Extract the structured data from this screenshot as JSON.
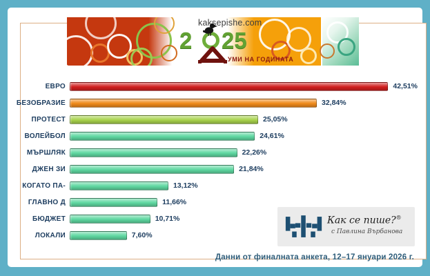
{
  "header": {
    "site": "kaksepishe.com",
    "year": "2025",
    "title": "ДУМИ НА ГОДИНАТА"
  },
  "chart_data": {
    "type": "bar",
    "orientation": "horizontal",
    "title": "2025 ДУМИ НА ГОДИНАТА",
    "categories": [
      "ЕВРО",
      "БЕЗОБРАЗИЕ",
      "ПРОТЕСТ",
      "ВОЛЕЙБОЛ",
      "МЪРШЛЯК",
      "ДЖЕН ЗИ",
      "КОГАТО ПА-",
      "ГЛАВНО Д",
      "БЮДЖЕТ",
      "ЛОКАЛИ"
    ],
    "values": [
      42.51,
      32.84,
      25.05,
      24.61,
      22.26,
      21.84,
      13.12,
      11.66,
      10.71,
      7.6
    ],
    "value_labels": [
      "42,51%",
      "32,84%",
      "25,05%",
      "24,61%",
      "22,26%",
      "21,84%",
      "13,12%",
      "11,66%",
      "10,71%",
      "7,60%"
    ],
    "bar_colors": [
      "#d01f1f",
      "#ef8a1b",
      "#a7d24b",
      "#5ed7a0",
      "#5ed7a0",
      "#5ed7a0",
      "#5ed7a0",
      "#5ed7a0",
      "#5ed7a0",
      "#5ed7a0"
    ],
    "xlim": [
      0,
      45
    ],
    "grid": false,
    "legend": false
  },
  "logo": {
    "brand": "Как се пише?",
    "reg": "®",
    "byline": "с Павлина Върбанова"
  },
  "footer": {
    "caption": "Данни от финалната анкета, 12–17 януари 2026 г."
  },
  "colors": {
    "frame": "#5fb0c7",
    "box_border": "#dcae84",
    "label_text": "#1e3e60",
    "caption_text": "#2e5d7a",
    "banner_red": "#c5380f",
    "banner_orange": "#f5a00a",
    "banner_teal": "#5bbd97",
    "year_green": "#62a233",
    "title_dark_red": "#8c1a10",
    "logo_mark_blue": "#1d4f72"
  }
}
